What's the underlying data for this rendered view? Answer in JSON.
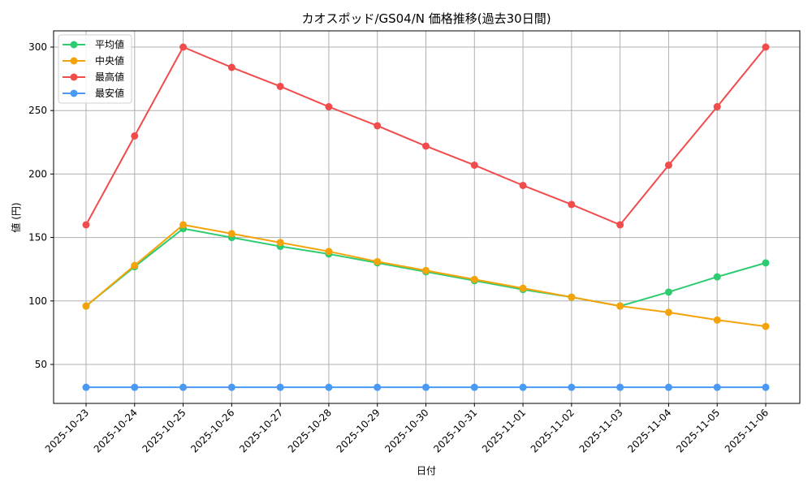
{
  "chart_data": {
    "type": "line",
    "title": "カオスポッド/GS04/N 価格推移(過去30日間)",
    "xlabel": "日付",
    "ylabel": "値 (円)",
    "ylim": [
      19,
      313
    ],
    "yticks": [
      50,
      100,
      150,
      200,
      250,
      300
    ],
    "grid": true,
    "legend_position": "upper left",
    "categories": [
      "2025-10-23",
      "2025-10-24",
      "2025-10-25",
      "2025-10-26",
      "2025-10-27",
      "2025-10-28",
      "2025-10-29",
      "2025-10-30",
      "2025-10-31",
      "2025-11-01",
      "2025-11-02",
      "2025-11-03",
      "2025-11-04",
      "2025-11-05",
      "2025-11-06"
    ],
    "series": [
      {
        "name": "平均値",
        "color": "#2ecc71",
        "values": [
          96,
          127,
          157,
          150,
          143,
          137,
          130,
          123,
          116,
          109,
          103,
          96,
          107,
          119,
          130
        ]
      },
      {
        "name": "中央値",
        "color": "#f5a30a",
        "values": [
          96,
          128,
          160,
          153,
          146,
          139,
          131,
          124,
          117,
          110,
          103,
          96,
          91,
          85,
          80
        ]
      },
      {
        "name": "最高値",
        "color": "#f24b4b",
        "values": [
          160,
          230,
          300,
          284,
          269,
          253,
          238,
          222,
          207,
          191,
          176,
          160,
          207,
          253,
          300
        ]
      },
      {
        "name": "最安値",
        "color": "#4a9af5",
        "values": [
          32,
          32,
          32,
          32,
          32,
          32,
          32,
          32,
          32,
          32,
          32,
          32,
          32,
          32,
          32
        ]
      }
    ]
  }
}
